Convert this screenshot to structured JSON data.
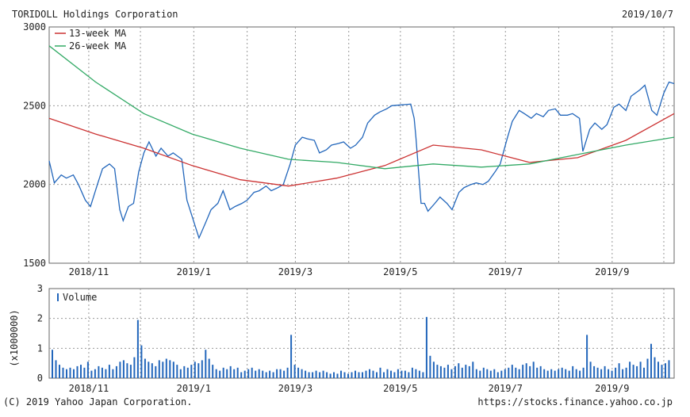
{
  "header": {
    "company": "TORIDOLL Holdings Corporation",
    "date": "2019/10/7"
  },
  "footer": {
    "copyright": "(C) 2019 Yahoo Japan Corporation.",
    "url": "https://stocks.finance.yahoo.co.jp"
  },
  "colors": {
    "price": "#2266bb",
    "ma13": "#cc3333",
    "ma26": "#33aa66",
    "volume": "#2266bb",
    "grid": "#999999",
    "frame": "#666666"
  },
  "chart_data": [
    {
      "type": "line",
      "title": "TORIDOLL Holdings Corporation",
      "x_tick_labels": [
        "2018/11",
        "2019/1",
        "2019/3",
        "2019/5",
        "2019/7",
        "2019/9"
      ],
      "x_domain": [
        "2018/10/09",
        "2019/10/07"
      ],
      "ylim": [
        1500,
        3000
      ],
      "y_ticks": [
        1500,
        2000,
        2500,
        3000
      ],
      "grid": true,
      "legend": "top-left",
      "series": [
        {
          "name": "",
          "color": "#2266bb",
          "points": [
            [
              "2018/10/09",
              2150
            ],
            [
              "2018/10/12",
              2010
            ],
            [
              "2018/10/16",
              2060
            ],
            [
              "2018/10/19",
              2040
            ],
            [
              "2018/10/23",
              2060
            ],
            [
              "2018/10/26",
              2000
            ],
            [
              "2018/10/30",
              1900
            ],
            [
              "2018/11/02",
              1860
            ],
            [
              "2018/11/06",
              2000
            ],
            [
              "2018/11/09",
              2100
            ],
            [
              "2018/11/13",
              2130
            ],
            [
              "2018/11/16",
              2100
            ],
            [
              "2018/11/19",
              1840
            ],
            [
              "2018/11/21",
              1770
            ],
            [
              "2018/11/24",
              1860
            ],
            [
              "2018/11/27",
              1880
            ],
            [
              "2018/11/30",
              2080
            ],
            [
              "2018/12/03",
              2200
            ],
            [
              "2018/12/06",
              2270
            ],
            [
              "2018/12/10",
              2180
            ],
            [
              "2018/12/13",
              2230
            ],
            [
              "2018/12/17",
              2180
            ],
            [
              "2018/12/20",
              2200
            ],
            [
              "2018/12/25",
              2160
            ],
            [
              "2018/12/28",
              1900
            ],
            [
              "2019/01/04",
              1660
            ],
            [
              "2019/01/08",
              1760
            ],
            [
              "2019/01/11",
              1840
            ],
            [
              "2019/01/15",
              1880
            ],
            [
              "2019/01/18",
              1960
            ],
            [
              "2019/01/22",
              1840
            ],
            [
              "2019/01/25",
              1860
            ],
            [
              "2019/01/29",
              1880
            ],
            [
              "2019/02/01",
              1900
            ],
            [
              "2019/02/05",
              1950
            ],
            [
              "2019/02/08",
              1960
            ],
            [
              "2019/02/12",
              1990
            ],
            [
              "2019/02/15",
              1960
            ],
            [
              "2019/02/19",
              1980
            ],
            [
              "2019/02/22",
              2000
            ],
            [
              "2019/02/26",
              2130
            ],
            [
              "2019/03/01",
              2250
            ],
            [
              "2019/03/05",
              2300
            ],
            [
              "2019/03/08",
              2290
            ],
            [
              "2019/03/12",
              2280
            ],
            [
              "2019/03/15",
              2200
            ],
            [
              "2019/03/19",
              2220
            ],
            [
              "2019/03/22",
              2250
            ],
            [
              "2019/03/26",
              2260
            ],
            [
              "2019/03/29",
              2270
            ],
            [
              "2019/04/02",
              2230
            ],
            [
              "2019/04/05",
              2250
            ],
            [
              "2019/04/09",
              2300
            ],
            [
              "2019/04/12",
              2390
            ],
            [
              "2019/04/16",
              2440
            ],
            [
              "2019/04/19",
              2460
            ],
            [
              "2019/04/23",
              2480
            ],
            [
              "2019/04/26",
              2500
            ],
            [
              "2019/05/07",
              2510
            ],
            [
              "2019/05/09",
              2420
            ],
            [
              "2019/05/10",
              2300
            ],
            [
              "2019/05/13",
              1880
            ],
            [
              "2019/05/15",
              1880
            ],
            [
              "2019/05/17",
              1830
            ],
            [
              "2019/05/21",
              1880
            ],
            [
              "2019/05/24",
              1920
            ],
            [
              "2019/05/28",
              1880
            ],
            [
              "2019/05/31",
              1840
            ],
            [
              "2019/06/04",
              1950
            ],
            [
              "2019/06/07",
              1980
            ],
            [
              "2019/06/11",
              2000
            ],
            [
              "2019/06/14",
              2010
            ],
            [
              "2019/06/18",
              2000
            ],
            [
              "2019/06/21",
              2020
            ],
            [
              "2019/06/25",
              2080
            ],
            [
              "2019/06/28",
              2130
            ],
            [
              "2019/07/02",
              2290
            ],
            [
              "2019/07/05",
              2400
            ],
            [
              "2019/07/09",
              2470
            ],
            [
              "2019/07/12",
              2450
            ],
            [
              "2019/07/16",
              2420
            ],
            [
              "2019/07/19",
              2450
            ],
            [
              "2019/07/23",
              2430
            ],
            [
              "2019/07/26",
              2470
            ],
            [
              "2019/07/30",
              2480
            ],
            [
              "2019/08/02",
              2440
            ],
            [
              "2019/08/06",
              2440
            ],
            [
              "2019/08/09",
              2450
            ],
            [
              "2019/08/13",
              2420
            ],
            [
              "2019/08/15",
              2210
            ],
            [
              "2019/08/19",
              2350
            ],
            [
              "2019/08/22",
              2390
            ],
            [
              "2019/08/26",
              2350
            ],
            [
              "2019/08/29",
              2380
            ],
            [
              "2019/09/02",
              2490
            ],
            [
              "2019/09/05",
              2510
            ],
            [
              "2019/09/09",
              2470
            ],
            [
              "2019/09/12",
              2560
            ],
            [
              "2019/09/17",
              2600
            ],
            [
              "2019/09/20",
              2630
            ],
            [
              "2019/09/24",
              2470
            ],
            [
              "2019/09/27",
              2440
            ],
            [
              "2019/10/01",
              2580
            ],
            [
              "2019/10/04",
              2650
            ],
            [
              "2019/10/07",
              2640
            ]
          ]
        },
        {
          "name": "13-week MA",
          "color": "#cc3333",
          "points": [
            [
              "2018/10/09",
              2420
            ],
            [
              "2018/11/05",
              2320
            ],
            [
              "2018/12/03",
              2230
            ],
            [
              "2018/12/31",
              2120
            ],
            [
              "2019/01/28",
              2030
            ],
            [
              "2019/02/25",
              1990
            ],
            [
              "2019/03/25",
              2040
            ],
            [
              "2019/04/22",
              2120
            ],
            [
              "2019/05/20",
              2250
            ],
            [
              "2019/06/17",
              2220
            ],
            [
              "2019/07/15",
              2140
            ],
            [
              "2019/08/12",
              2170
            ],
            [
              "2019/09/09",
              2280
            ],
            [
              "2019/10/07",
              2450
            ]
          ]
        },
        {
          "name": "26-week MA",
          "color": "#33aa66",
          "points": [
            [
              "2018/10/09",
              2880
            ],
            [
              "2018/11/05",
              2650
            ],
            [
              "2018/12/03",
              2450
            ],
            [
              "2018/12/31",
              2320
            ],
            [
              "2019/01/28",
              2230
            ],
            [
              "2019/02/25",
              2160
            ],
            [
              "2019/03/25",
              2140
            ],
            [
              "2019/04/22",
              2100
            ],
            [
              "2019/05/20",
              2130
            ],
            [
              "2019/06/17",
              2110
            ],
            [
              "2019/07/15",
              2130
            ],
            [
              "2019/08/12",
              2190
            ],
            [
              "2019/09/09",
              2250
            ],
            [
              "2019/10/07",
              2300
            ]
          ]
        }
      ]
    },
    {
      "type": "bar",
      "x_tick_labels": [
        "2018/11",
        "2019/1",
        "2019/3",
        "2019/5",
        "2019/7",
        "2019/9"
      ],
      "ylim": [
        0,
        3
      ],
      "y_ticks": [
        0,
        1,
        2,
        3
      ],
      "ylabel": "(x1000000)",
      "grid": true,
      "legend": "top-left",
      "series": [
        {
          "name": "Volume",
          "color": "#2266bb",
          "values": [
            0.95,
            0.6,
            0.45,
            0.35,
            0.3,
            0.35,
            0.3,
            0.4,
            0.45,
            0.35,
            0.55,
            0.25,
            0.3,
            0.4,
            0.35,
            0.3,
            0.45,
            0.3,
            0.4,
            0.55,
            0.6,
            0.5,
            0.45,
            0.7,
            1.95,
            1.1,
            0.65,
            0.55,
            0.5,
            0.4,
            0.6,
            0.55,
            0.65,
            0.6,
            0.55,
            0.45,
            0.3,
            0.4,
            0.35,
            0.45,
            0.55,
            0.5,
            0.6,
            0.95,
            0.65,
            0.45,
            0.3,
            0.25,
            0.35,
            0.3,
            0.4,
            0.3,
            0.35,
            0.2,
            0.25,
            0.3,
            0.35,
            0.25,
            0.3,
            0.25,
            0.2,
            0.25,
            0.2,
            0.3,
            0.3,
            0.25,
            0.35,
            1.45,
            0.45,
            0.35,
            0.3,
            0.25,
            0.2,
            0.2,
            0.25,
            0.2,
            0.25,
            0.2,
            0.15,
            0.2,
            0.15,
            0.25,
            0.2,
            0.15,
            0.2,
            0.25,
            0.2,
            0.2,
            0.25,
            0.3,
            0.25,
            0.2,
            0.35,
            0.2,
            0.3,
            0.25,
            0.2,
            0.3,
            0.25,
            0.25,
            0.2,
            0.35,
            0.3,
            0.25,
            0.2,
            2.05,
            0.75,
            0.55,
            0.45,
            0.4,
            0.35,
            0.45,
            0.3,
            0.4,
            0.5,
            0.35,
            0.45,
            0.4,
            0.55,
            0.3,
            0.25,
            0.35,
            0.3,
            0.25,
            0.3,
            0.2,
            0.25,
            0.3,
            0.35,
            0.45,
            0.35,
            0.3,
            0.45,
            0.5,
            0.4,
            0.55,
            0.35,
            0.4,
            0.3,
            0.25,
            0.3,
            0.25,
            0.3,
            0.35,
            0.3,
            0.25,
            0.4,
            0.3,
            0.25,
            0.35,
            1.45,
            0.55,
            0.4,
            0.35,
            0.3,
            0.4,
            0.3,
            0.25,
            0.35,
            0.5,
            0.3,
            0.35,
            0.55,
            0.45,
            0.4,
            0.55,
            0.35,
            0.65,
            1.15,
            0.7,
            0.55,
            0.45,
            0.5,
            0.6
          ]
        }
      ]
    }
  ]
}
